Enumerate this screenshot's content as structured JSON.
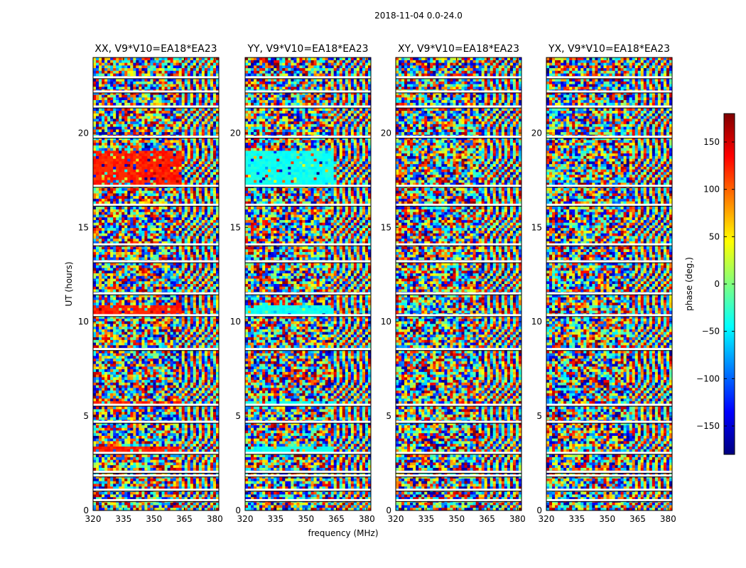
{
  "chart_data": {
    "type": "heatmap",
    "title": "2018-11-04 0.0-24.0",
    "xlabel": "frequency (MHz)",
    "ylabel": "UT (hours)",
    "xlim": [
      320,
      382
    ],
    "ylim": [
      0,
      24
    ],
    "xticks": [
      320,
      335,
      350,
      365,
      380
    ],
    "yticks": [
      0,
      5,
      10,
      15,
      20
    ],
    "colormap": "jet",
    "colorbar": {
      "label": "phase (deg.)",
      "range": [
        -180,
        180
      ],
      "ticks": [
        -150,
        -100,
        -50,
        0,
        50,
        100,
        150
      ],
      "tick_labels": [
        "−150",
        "−100",
        "−50",
        "0",
        "50",
        "100",
        "150"
      ],
      "colors": [
        "#00007f",
        "#0000ff",
        "#007fff",
        "#00ffff",
        "#7fff7f",
        "#ffff00",
        "#ff7f00",
        "#ff0000",
        "#7f0000"
      ]
    },
    "panels": [
      {
        "title": "XX, V9*V10=EA18*EA23",
        "calibrated_phase_deg": 125
      },
      {
        "title": "YY, V9*V10=EA18*EA23",
        "calibrated_phase_deg": -40
      },
      {
        "title": "XY, V9*V10=EA18*EA23",
        "calibrated_phase_deg": null
      },
      {
        "title": "YX, V9*V10=EA18*EA23",
        "calibrated_phase_deg": null
      }
    ],
    "flagged_gaps_hours": [
      0.55,
      1.1,
      1.85,
      2.05,
      3.05,
      4.7,
      5.6,
      8.55,
      10.35,
      11.5,
      13.2,
      14.1,
      16.2,
      17.2,
      19.8,
      21.4,
      22.2,
      22.95
    ],
    "calibrator_scans_hours": [
      [
        3.0,
        3.4
      ],
      [
        5.5,
        5.85
      ],
      [
        10.25,
        10.9
      ],
      [
        17.2,
        19.0
      ]
    ]
  }
}
